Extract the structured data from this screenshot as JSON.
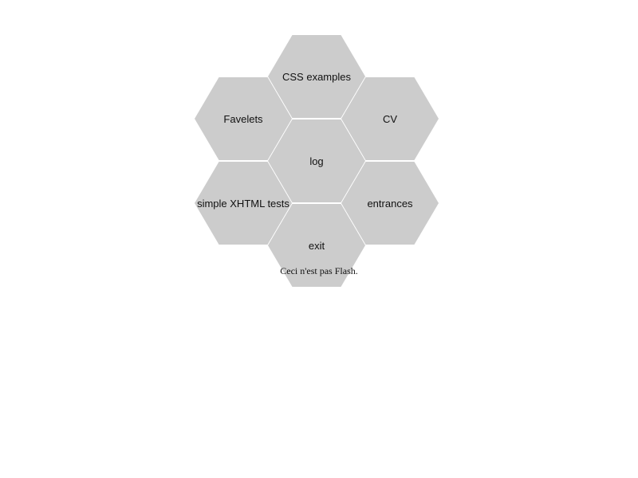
{
  "colors": {
    "hex_fill": "#cccccc",
    "background": "#ffffff",
    "text": "#111111"
  },
  "menu": {
    "items": [
      {
        "id": "css",
        "label": "CSS examples"
      },
      {
        "id": "favelets",
        "label": "Favelets"
      },
      {
        "id": "cv",
        "label": "CV"
      },
      {
        "id": "log",
        "label": "log"
      },
      {
        "id": "xhtml",
        "label": "simple XHTML tests"
      },
      {
        "id": "entrances",
        "label": "entrances"
      },
      {
        "id": "exit",
        "label": "exit"
      }
    ]
  },
  "caption": "Ceci n'est pas Flash."
}
